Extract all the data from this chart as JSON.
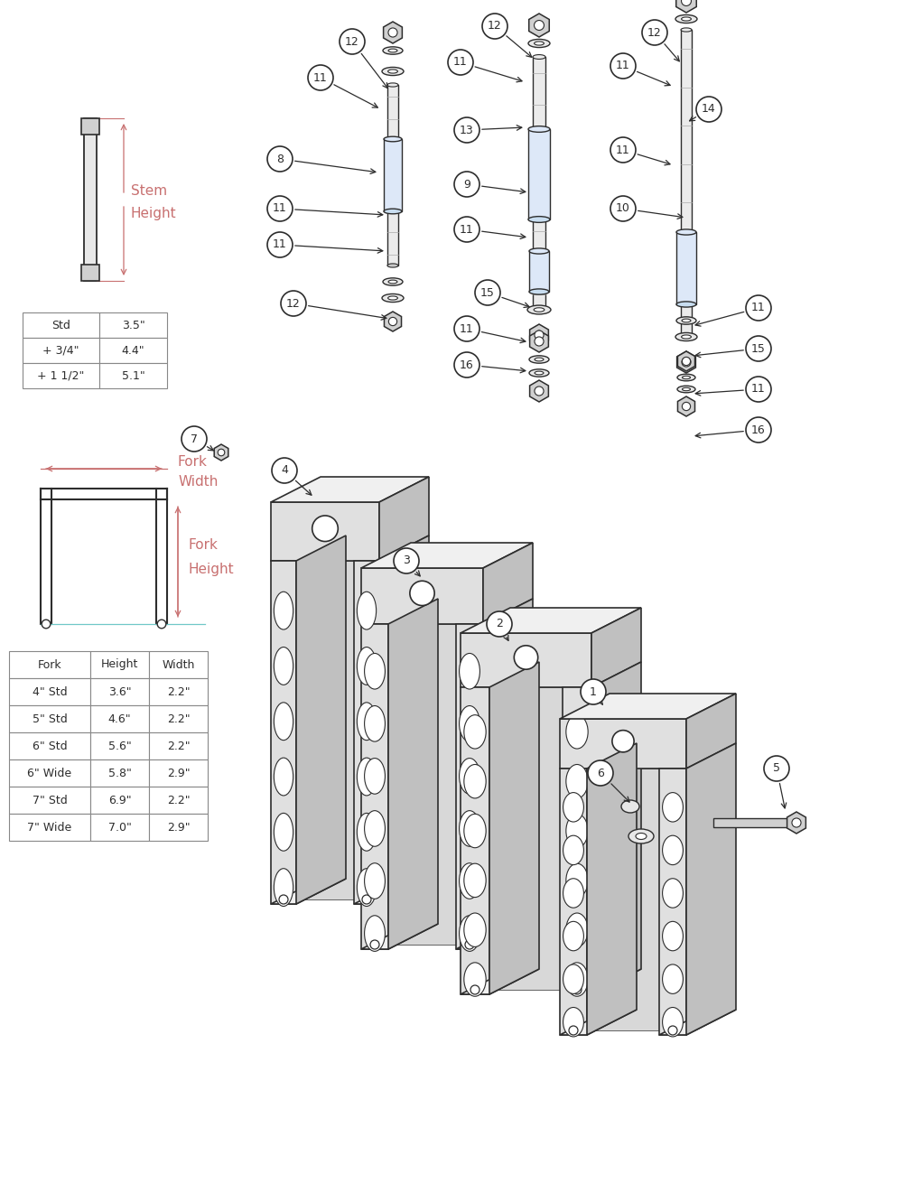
{
  "bg_color": "#ffffff",
  "tc": "#2d2d2d",
  "dc": "#c87070",
  "dc2": "#70c8c8",
  "gray1": "#e8e8e8",
  "gray2": "#d0d0d0",
  "gray3": "#b8b8b8",
  "gray4": "#f4f4f4",
  "stem_table": {
    "col1": [
      "Std",
      "+ 3/4\"",
      "+ 1 1/2\""
    ],
    "col2": [
      "3.5\"",
      "4.4\"",
      "5.1\""
    ]
  },
  "fork_table": {
    "headers": [
      "Fork",
      "Height",
      "Width"
    ],
    "rows": [
      [
        "4\" Std",
        "3.6\"",
        "2.2\""
      ],
      [
        "5\" Std",
        "4.6\"",
        "2.2\""
      ],
      [
        "6\" Std",
        "5.6\"",
        "2.2\""
      ],
      [
        "6\" Wide",
        "5.8\"",
        "2.9\""
      ],
      [
        "7\" Std",
        "6.9\"",
        "2.2\""
      ],
      [
        "7\" Wide",
        "7.0\"",
        "2.9\""
      ]
    ]
  }
}
